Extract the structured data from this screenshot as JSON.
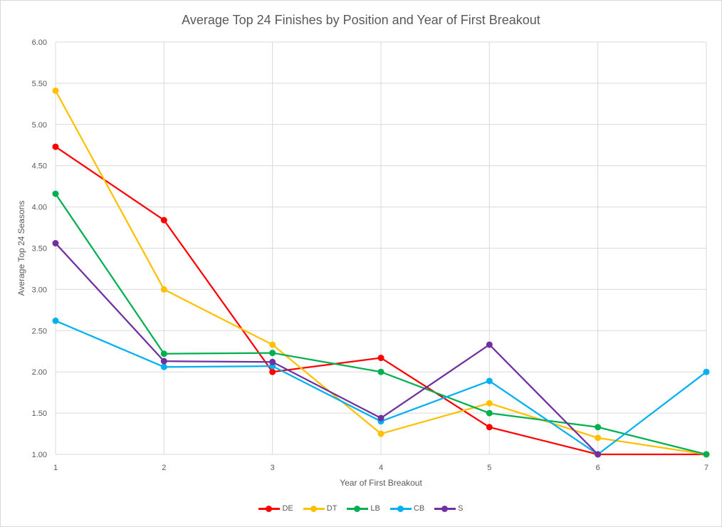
{
  "chart_data": {
    "type": "line",
    "title": "Average Top 24 Finishes by Position and Year of First Breakout",
    "xlabel": "Year of First Breakout",
    "ylabel": "Average Top 24 Seasons",
    "x": [
      1,
      2,
      3,
      4,
      5,
      6,
      7
    ],
    "ylim": [
      1.0,
      6.0
    ],
    "yticks": [
      "1.00",
      "1.50",
      "2.00",
      "2.50",
      "3.00",
      "3.50",
      "4.00",
      "4.50",
      "5.00",
      "5.50",
      "6.00"
    ],
    "grid": true,
    "legend": "bottom",
    "series": [
      {
        "name": "DE",
        "color": "#ff0000",
        "values": [
          4.73,
          3.84,
          2.0,
          2.17,
          1.33,
          1.0,
          1.0
        ]
      },
      {
        "name": "DT",
        "color": "#ffc000",
        "values": [
          5.41,
          3.0,
          2.33,
          1.25,
          1.62,
          1.2,
          1.0
        ]
      },
      {
        "name": "LB",
        "color": "#00b050",
        "values": [
          4.16,
          2.22,
          2.23,
          2.0,
          1.5,
          1.33,
          1.0
        ]
      },
      {
        "name": "CB",
        "color": "#00b0f0",
        "values": [
          2.62,
          2.06,
          2.07,
          1.4,
          1.89,
          1.0,
          2.0
        ]
      },
      {
        "name": "S",
        "color": "#7030a0",
        "values": [
          3.56,
          2.13,
          2.12,
          1.44,
          2.33,
          1.0,
          null
        ]
      }
    ]
  }
}
